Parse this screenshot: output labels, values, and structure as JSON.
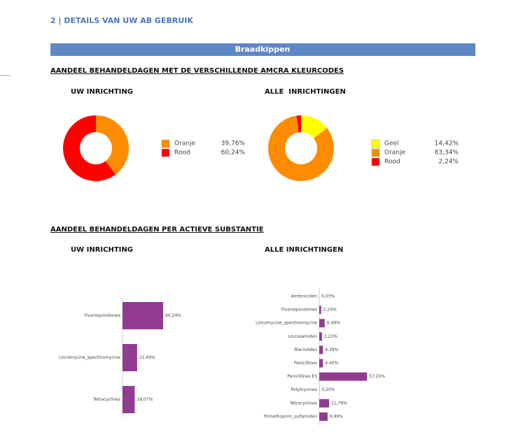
{
  "header": {
    "title": "2 | DETAILS VAN UW AB GEBRUIK",
    "banner": "Braadkippen"
  },
  "sections": [
    "AANDEEL BEHANDELDAGEN MET DE VERSCHILLENDE AMCRA KLEURCODES",
    "AANDEEL BEHANDELDAGEN PER ACTIEVE SUBSTANTIE"
  ],
  "chart_data": [
    {
      "type": "donut",
      "title": "UW INRICHTING",
      "categories": [
        "Oranje",
        "Rood"
      ],
      "values": [
        39.76,
        60.24
      ],
      "value_labels": [
        "39,76%",
        "60,24%"
      ],
      "colors": [
        "#ff8c00",
        "#ff0000"
      ]
    },
    {
      "type": "donut",
      "title": "ALLE  INRICHTINGEN",
      "categories": [
        "Geel",
        "Oranje",
        "Rood"
      ],
      "values": [
        14.42,
        83.34,
        2.24
      ],
      "value_labels": [
        "14,42%",
        "83,34%",
        "2,24%"
      ],
      "colors": [
        "#ffff00",
        "#ff8c00",
        "#ff0000"
      ]
    },
    {
      "type": "bar",
      "title": "UW INRICHTING",
      "categories": [
        "Fluoroquinolones",
        "Lincomycine_spectinomycine",
        "Tetracyclines"
      ],
      "values": [
        60.24,
        21.69,
        18.07
      ],
      "value_labels": [
        "60,24%",
        "21,69%",
        "18,07%"
      ],
      "color": "#923c91"
    },
    {
      "type": "bar",
      "title": "ALLE INRICHTINGEN",
      "categories": [
        "Amfenicolen",
        "Fluoroquinolones",
        "Lincomycine_spectinomycine",
        "Lincosamiden",
        "Macroliden",
        "Penicillines",
        "Penicillines ES",
        "Polymyxines",
        "Tetracyclines",
        "Trimethoprim_sulfamiden"
      ],
      "values": [
        0.03,
        2.24,
        6.49,
        3.23,
        4.38,
        4.4,
        57.25,
        0.2,
        11.79,
        9.99
      ],
      "value_labels": [
        "0,03%",
        "2,24%",
        "6,49%",
        "3,23%",
        "4,38%",
        "4,40%",
        "57,25%",
        "0,20%",
        "11,79%",
        "9,99%"
      ],
      "color": "#923c91"
    }
  ]
}
